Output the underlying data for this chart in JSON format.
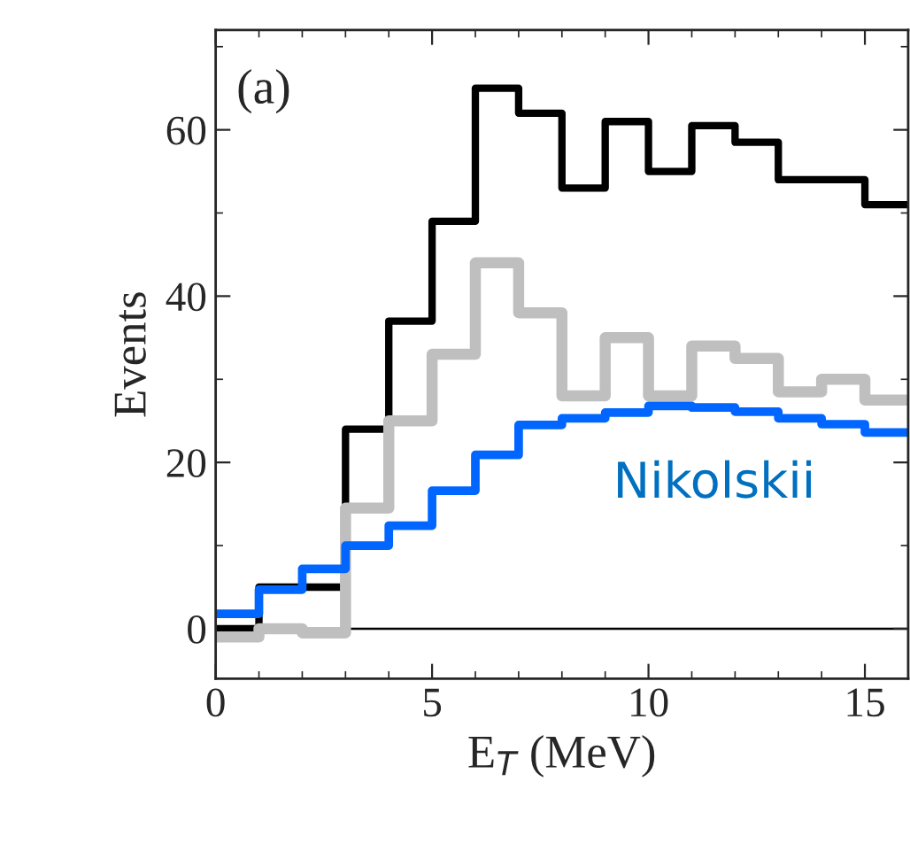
{
  "chart_data": {
    "type": "histogram",
    "xlabel": "E$_{T}$ (MeV)",
    "ylabel": "Events",
    "annotations": [
      "(a)"
    ],
    "bins": [
      0,
      1,
      2,
      3,
      4,
      5,
      6,
      7,
      8,
      9,
      10,
      11,
      12,
      13,
      14,
      15,
      16
    ],
    "series": [
      {
        "color": "#000000",
        "values": [
          0,
          5,
          5,
          24,
          37,
          49,
          65,
          62,
          53,
          61,
          55,
          60.5,
          58.5,
          54,
          54,
          51
        ]
      },
      {
        "color": "#bfbfbf",
        "values": [
          -1,
          0,
          -0.5,
          14.5,
          25,
          33,
          44,
          38,
          28,
          35,
          28,
          34,
          32.5,
          28.5,
          30,
          27.5
        ]
      },
      {
        "name": "Nikolskii",
        "color": "#0066ff",
        "values": [
          1.8,
          4.7,
          7.2,
          10,
          12.4,
          16.6,
          20.9,
          24.5,
          25.3,
          26,
          26.8,
          26.6,
          26.1,
          25.3,
          24.6,
          23.6
        ]
      }
    ],
    "xlim": [
      0,
      16
    ],
    "xticks": [
      0,
      5,
      10,
      15
    ],
    "ylim": [
      -6,
      72
    ],
    "yticks": [
      0,
      20,
      40,
      60
    ],
    "ref_lines": [
      {
        "axis": "y",
        "value": 0,
        "color": "#000000"
      }
    ],
    "grid": false,
    "legend": false
  }
}
